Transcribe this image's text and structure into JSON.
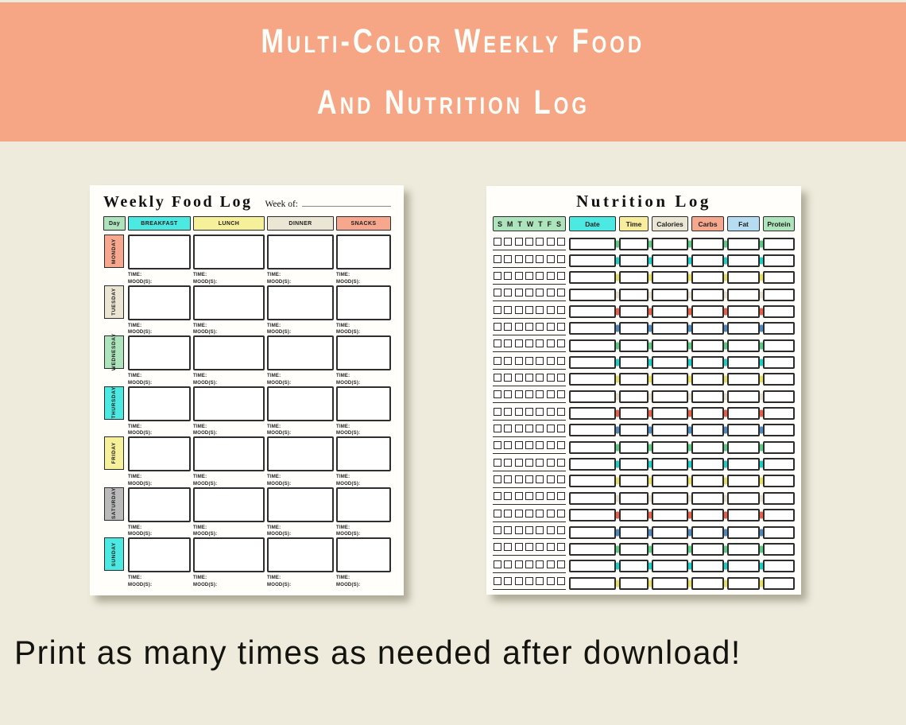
{
  "banner": {
    "line1": "Multi-Color Weekly Food",
    "line2": "And Nutrition Log",
    "bg_color": "#F6A684",
    "text_color": "#FDFDFA"
  },
  "caption": "Print as many times as needed after download!",
  "food_log": {
    "title": "Weekly Food Log",
    "week_of_label": "Week of:",
    "columns": [
      {
        "label": "Day",
        "color": "#AEE4BC"
      },
      {
        "label": "BREAKFAST",
        "color": "#4BE9E2"
      },
      {
        "label": "LUNCH",
        "color": "#F7F09B"
      },
      {
        "label": "DINNER",
        "color": "#EAE6D3"
      },
      {
        "label": "SNACKS",
        "color": "#F6A78D"
      }
    ],
    "days": [
      {
        "label": "MONDAY",
        "color": "#F6A78D"
      },
      {
        "label": "TUESDAY",
        "color": "#EAE6D3"
      },
      {
        "label": "WEDNESDAY",
        "color": "#AEE4BC"
      },
      {
        "label": "THURSDAY",
        "color": "#4BE9E2"
      },
      {
        "label": "FRIDAY",
        "color": "#F7F09B"
      },
      {
        "label": "SATURDAY",
        "color": "#BABABA"
      },
      {
        "label": "SUNDAY",
        "color": "#4BE9E2"
      }
    ],
    "meals_per_day": 4,
    "cell_labels": [
      "TIME:",
      "MOOD(S):"
    ]
  },
  "nutrition_log": {
    "title": "Nutrition Log",
    "day_initials": [
      "S",
      "M",
      "T",
      "W",
      "T",
      "F",
      "S"
    ],
    "header_checkbox_color": "#AEE4BC",
    "columns": [
      {
        "label": "Date",
        "color": "#4BE9E2"
      },
      {
        "label": "Time",
        "color": "#F7ED9C"
      },
      {
        "label": "Calories",
        "color": "#EAE6D3"
      },
      {
        "label": "Carbs",
        "color": "#F6A88E"
      },
      {
        "label": "Fat",
        "color": "#B5DCF0"
      },
      {
        "label": "Protein",
        "color": "#AEE4BC"
      }
    ],
    "rows": 21,
    "checkboxes_per_row": 7,
    "tick_cycle": [
      "#5BC983",
      "#1ECDC5",
      "#E7DF63",
      "#E5E1CE",
      "#E2604A",
      "#4E88BB"
    ]
  }
}
